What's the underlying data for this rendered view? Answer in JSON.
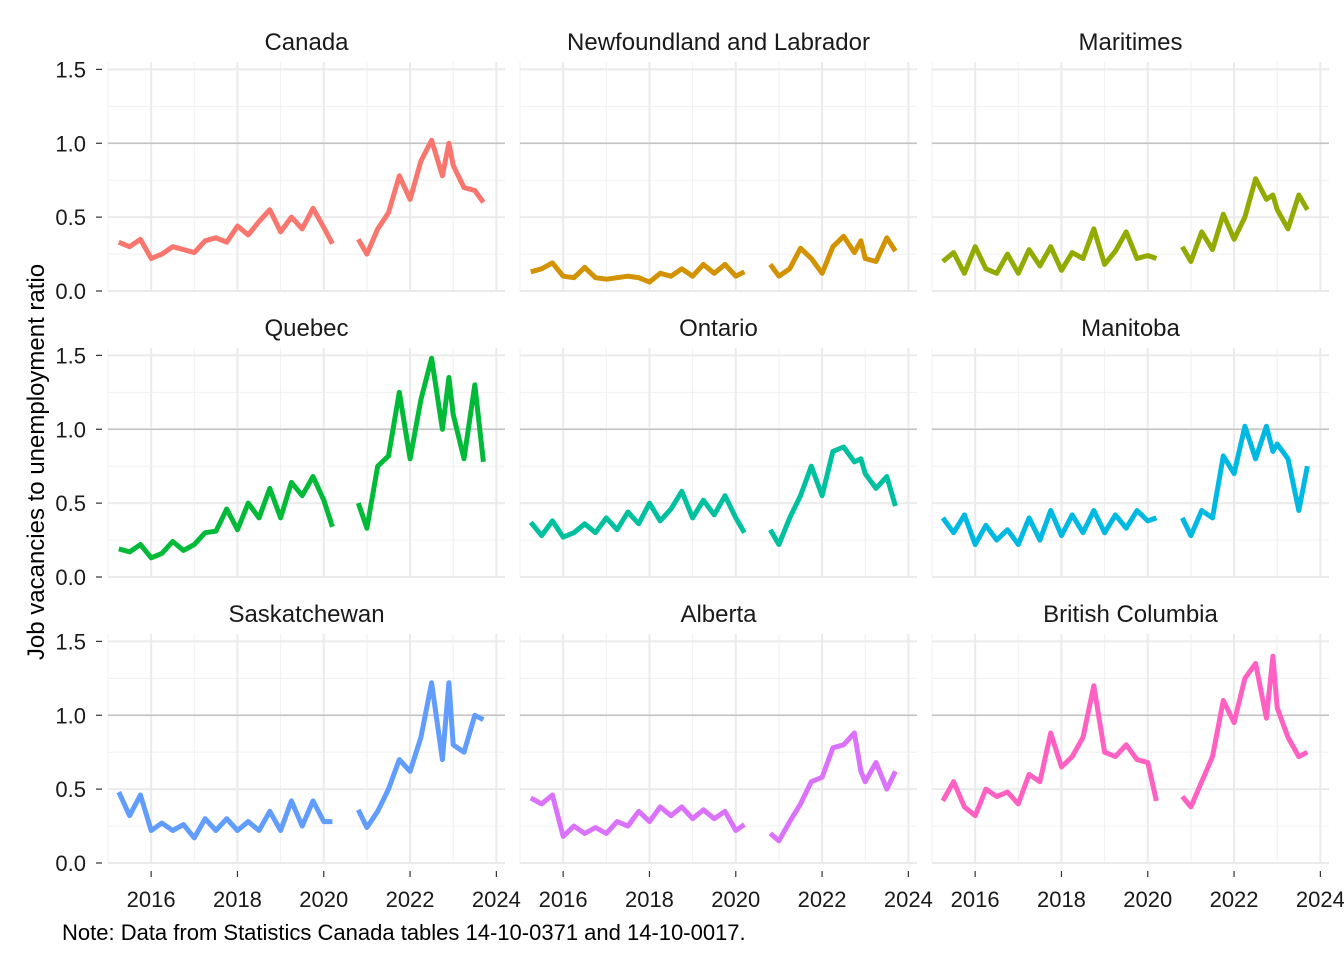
{
  "chart_data": {
    "type": "line",
    "layout": "facet-grid-3x3",
    "ylabel": "Job vacancies to unemployment ratio",
    "xlabel": "",
    "caption": "Note: Data from Statistics Canada tables 14-10-0371 and 14-10-0017.",
    "xlim": [
      2015,
      2024.2
    ],
    "ylim": [
      0,
      1.55
    ],
    "x_ticks": [
      2016,
      2018,
      2020,
      2022,
      2024
    ],
    "x_tick_labels": [
      "2016",
      "2018",
      "2020",
      "2022",
      "2024"
    ],
    "y_ticks": [
      0.0,
      0.5,
      1.0,
      1.5
    ],
    "y_tick_labels": [
      "0.0",
      "0.5",
      "1.0",
      "1.5"
    ],
    "reference_line": 1.0,
    "grid": true,
    "legend": "none",
    "panels": [
      {
        "name": "Canada",
        "color": "#F8766D",
        "segments": [
          {
            "x": [
              2015.25,
              2015.5,
              2015.75,
              2016.0,
              2016.25,
              2016.5,
              2016.75,
              2017.0,
              2017.25,
              2017.5,
              2017.75,
              2018.0,
              2018.25,
              2018.5,
              2018.75,
              2019.0,
              2019.25,
              2019.5,
              2019.75,
              2020.0,
              2020.2
            ],
            "y": [
              0.33,
              0.3,
              0.35,
              0.22,
              0.25,
              0.3,
              0.28,
              0.26,
              0.34,
              0.36,
              0.33,
              0.44,
              0.38,
              0.47,
              0.55,
              0.4,
              0.5,
              0.42,
              0.56,
              0.43,
              0.32
            ]
          },
          {
            "x": [
              2020.8,
              2021.0,
              2021.25,
              2021.5,
              2021.75,
              2022.0,
              2022.25,
              2022.5,
              2022.75,
              2022.9,
              2023.0,
              2023.25,
              2023.5,
              2023.7
            ],
            "y": [
              0.35,
              0.25,
              0.42,
              0.53,
              0.78,
              0.62,
              0.88,
              1.02,
              0.78,
              1.0,
              0.85,
              0.7,
              0.68,
              0.6
            ]
          }
        ]
      },
      {
        "name": "Newfoundland and Labrador",
        "color": "#D39200",
        "segments": [
          {
            "x": [
              2015.25,
              2015.5,
              2015.75,
              2016.0,
              2016.25,
              2016.5,
              2016.75,
              2017.0,
              2017.25,
              2017.5,
              2017.75,
              2018.0,
              2018.25,
              2018.5,
              2018.75,
              2019.0,
              2019.25,
              2019.5,
              2019.75,
              2020.0,
              2020.2
            ],
            "y": [
              0.13,
              0.15,
              0.19,
              0.1,
              0.09,
              0.16,
              0.09,
              0.08,
              0.09,
              0.1,
              0.09,
              0.06,
              0.12,
              0.1,
              0.15,
              0.1,
              0.18,
              0.12,
              0.18,
              0.1,
              0.13
            ]
          },
          {
            "x": [
              2020.8,
              2021.0,
              2021.25,
              2021.5,
              2021.75,
              2022.0,
              2022.25,
              2022.5,
              2022.75,
              2022.9,
              2023.0,
              2023.25,
              2023.5,
              2023.7
            ],
            "y": [
              0.18,
              0.1,
              0.15,
              0.29,
              0.22,
              0.12,
              0.3,
              0.37,
              0.26,
              0.34,
              0.22,
              0.2,
              0.36,
              0.27
            ]
          }
        ]
      },
      {
        "name": "Maritimes",
        "color": "#93AA00",
        "segments": [
          {
            "x": [
              2015.25,
              2015.5,
              2015.75,
              2016.0,
              2016.25,
              2016.5,
              2016.75,
              2017.0,
              2017.25,
              2017.5,
              2017.75,
              2018.0,
              2018.25,
              2018.5,
              2018.75,
              2019.0,
              2019.25,
              2019.5,
              2019.75,
              2020.0,
              2020.2
            ],
            "y": [
              0.2,
              0.26,
              0.12,
              0.3,
              0.15,
              0.12,
              0.25,
              0.12,
              0.28,
              0.17,
              0.3,
              0.14,
              0.26,
              0.22,
              0.42,
              0.18,
              0.27,
              0.4,
              0.22,
              0.24,
              0.22
            ]
          },
          {
            "x": [
              2020.8,
              2021.0,
              2021.25,
              2021.5,
              2021.75,
              2022.0,
              2022.25,
              2022.5,
              2022.75,
              2022.9,
              2023.0,
              2023.25,
              2023.5,
              2023.7
            ],
            "y": [
              0.3,
              0.2,
              0.4,
              0.28,
              0.52,
              0.35,
              0.5,
              0.76,
              0.62,
              0.65,
              0.55,
              0.42,
              0.65,
              0.55
            ]
          }
        ]
      },
      {
        "name": "Quebec",
        "color": "#00BA38",
        "segments": [
          {
            "x": [
              2015.25,
              2015.5,
              2015.75,
              2016.0,
              2016.25,
              2016.5,
              2016.75,
              2017.0,
              2017.25,
              2017.5,
              2017.75,
              2018.0,
              2018.25,
              2018.5,
              2018.75,
              2019.0,
              2019.25,
              2019.5,
              2019.75,
              2020.0,
              2020.2
            ],
            "y": [
              0.19,
              0.17,
              0.22,
              0.13,
              0.16,
              0.24,
              0.18,
              0.22,
              0.3,
              0.31,
              0.46,
              0.32,
              0.5,
              0.4,
              0.6,
              0.4,
              0.64,
              0.55,
              0.68,
              0.52,
              0.34
            ]
          },
          {
            "x": [
              2020.8,
              2021.0,
              2021.25,
              2021.5,
              2021.75,
              2022.0,
              2022.25,
              2022.5,
              2022.75,
              2022.9,
              2023.0,
              2023.25,
              2023.5,
              2023.7
            ],
            "y": [
              0.5,
              0.33,
              0.75,
              0.82,
              1.25,
              0.8,
              1.2,
              1.48,
              1.0,
              1.35,
              1.1,
              0.8,
              1.3,
              0.78
            ]
          }
        ]
      },
      {
        "name": "Ontario",
        "color": "#00C19F",
        "segments": [
          {
            "x": [
              2015.25,
              2015.5,
              2015.75,
              2016.0,
              2016.25,
              2016.5,
              2016.75,
              2017.0,
              2017.25,
              2017.5,
              2017.75,
              2018.0,
              2018.25,
              2018.5,
              2018.75,
              2019.0,
              2019.25,
              2019.5,
              2019.75,
              2020.0,
              2020.2
            ],
            "y": [
              0.37,
              0.28,
              0.38,
              0.27,
              0.3,
              0.36,
              0.3,
              0.4,
              0.32,
              0.44,
              0.36,
              0.5,
              0.38,
              0.46,
              0.58,
              0.4,
              0.52,
              0.42,
              0.55,
              0.4,
              0.3
            ]
          },
          {
            "x": [
              2020.8,
              2021.0,
              2021.25,
              2021.5,
              2021.75,
              2022.0,
              2022.25,
              2022.5,
              2022.75,
              2022.9,
              2023.0,
              2023.25,
              2023.5,
              2023.7
            ],
            "y": [
              0.32,
              0.22,
              0.4,
              0.55,
              0.75,
              0.55,
              0.85,
              0.88,
              0.78,
              0.8,
              0.7,
              0.6,
              0.68,
              0.48
            ]
          }
        ]
      },
      {
        "name": "Manitoba",
        "color": "#00B9E3",
        "segments": [
          {
            "x": [
              2015.25,
              2015.5,
              2015.75,
              2016.0,
              2016.25,
              2016.5,
              2016.75,
              2017.0,
              2017.25,
              2017.5,
              2017.75,
              2018.0,
              2018.25,
              2018.5,
              2018.75,
              2019.0,
              2019.25,
              2019.5,
              2019.75,
              2020.0,
              2020.2
            ],
            "y": [
              0.4,
              0.3,
              0.42,
              0.22,
              0.35,
              0.25,
              0.32,
              0.22,
              0.4,
              0.25,
              0.45,
              0.28,
              0.42,
              0.3,
              0.45,
              0.3,
              0.42,
              0.33,
              0.45,
              0.38,
              0.4
            ]
          },
          {
            "x": [
              2020.8,
              2021.0,
              2021.25,
              2021.5,
              2021.75,
              2022.0,
              2022.25,
              2022.5,
              2022.75,
              2022.9,
              2023.0,
              2023.25,
              2023.5,
              2023.7
            ],
            "y": [
              0.4,
              0.28,
              0.45,
              0.4,
              0.82,
              0.7,
              1.02,
              0.8,
              1.02,
              0.85,
              0.9,
              0.8,
              0.45,
              0.75
            ]
          }
        ]
      },
      {
        "name": "Saskatchewan",
        "color": "#619CFF",
        "segments": [
          {
            "x": [
              2015.25,
              2015.5,
              2015.75,
              2016.0,
              2016.25,
              2016.5,
              2016.75,
              2017.0,
              2017.25,
              2017.5,
              2017.75,
              2018.0,
              2018.25,
              2018.5,
              2018.75,
              2019.0,
              2019.25,
              2019.5,
              2019.75,
              2020.0,
              2020.2
            ],
            "y": [
              0.48,
              0.32,
              0.46,
              0.22,
              0.27,
              0.22,
              0.26,
              0.17,
              0.3,
              0.22,
              0.3,
              0.22,
              0.28,
              0.22,
              0.35,
              0.22,
              0.42,
              0.25,
              0.42,
              0.28,
              0.28
            ]
          },
          {
            "x": [
              2020.8,
              2021.0,
              2021.25,
              2021.5,
              2021.75,
              2022.0,
              2022.25,
              2022.5,
              2022.75,
              2022.9,
              2023.0,
              2023.25,
              2023.5,
              2023.7
            ],
            "y": [
              0.36,
              0.24,
              0.35,
              0.5,
              0.7,
              0.62,
              0.85,
              1.22,
              0.7,
              1.22,
              0.8,
              0.75,
              1.0,
              0.97
            ]
          }
        ]
      },
      {
        "name": "Alberta",
        "color": "#DB72FB",
        "segments": [
          {
            "x": [
              2015.25,
              2015.5,
              2015.75,
              2016.0,
              2016.25,
              2016.5,
              2016.75,
              2017.0,
              2017.25,
              2017.5,
              2017.75,
              2018.0,
              2018.25,
              2018.5,
              2018.75,
              2019.0,
              2019.25,
              2019.5,
              2019.75,
              2020.0,
              2020.2
            ],
            "y": [
              0.44,
              0.4,
              0.46,
              0.18,
              0.25,
              0.2,
              0.24,
              0.2,
              0.28,
              0.25,
              0.35,
              0.28,
              0.38,
              0.32,
              0.38,
              0.3,
              0.36,
              0.3,
              0.35,
              0.22,
              0.26
            ]
          },
          {
            "x": [
              2020.8,
              2021.0,
              2021.25,
              2021.5,
              2021.75,
              2022.0,
              2022.25,
              2022.5,
              2022.75,
              2022.9,
              2023.0,
              2023.25,
              2023.5,
              2023.7
            ],
            "y": [
              0.2,
              0.15,
              0.28,
              0.4,
              0.55,
              0.58,
              0.78,
              0.8,
              0.88,
              0.62,
              0.55,
              0.68,
              0.5,
              0.62
            ]
          }
        ]
      },
      {
        "name": "British Columbia",
        "color": "#FF61C3",
        "segments": [
          {
            "x": [
              2015.25,
              2015.5,
              2015.75,
              2016.0,
              2016.25,
              2016.5,
              2016.75,
              2017.0,
              2017.25,
              2017.5,
              2017.75,
              2018.0,
              2018.25,
              2018.5,
              2018.75,
              2019.0,
              2019.25,
              2019.5,
              2019.75,
              2020.0,
              2020.2
            ],
            "y": [
              0.42,
              0.55,
              0.38,
              0.32,
              0.5,
              0.45,
              0.48,
              0.4,
              0.6,
              0.55,
              0.88,
              0.65,
              0.72,
              0.85,
              1.2,
              0.75,
              0.72,
              0.8,
              0.7,
              0.68,
              0.42
            ]
          },
          {
            "x": [
              2020.8,
              2021.0,
              2021.25,
              2021.5,
              2021.75,
              2022.0,
              2022.25,
              2022.5,
              2022.75,
              2022.9,
              2023.0,
              2023.25,
              2023.5,
              2023.7
            ],
            "y": [
              0.45,
              0.38,
              0.55,
              0.72,
              1.1,
              0.95,
              1.25,
              1.35,
              0.98,
              1.4,
              1.05,
              0.85,
              0.72,
              0.75
            ]
          }
        ]
      }
    ]
  }
}
